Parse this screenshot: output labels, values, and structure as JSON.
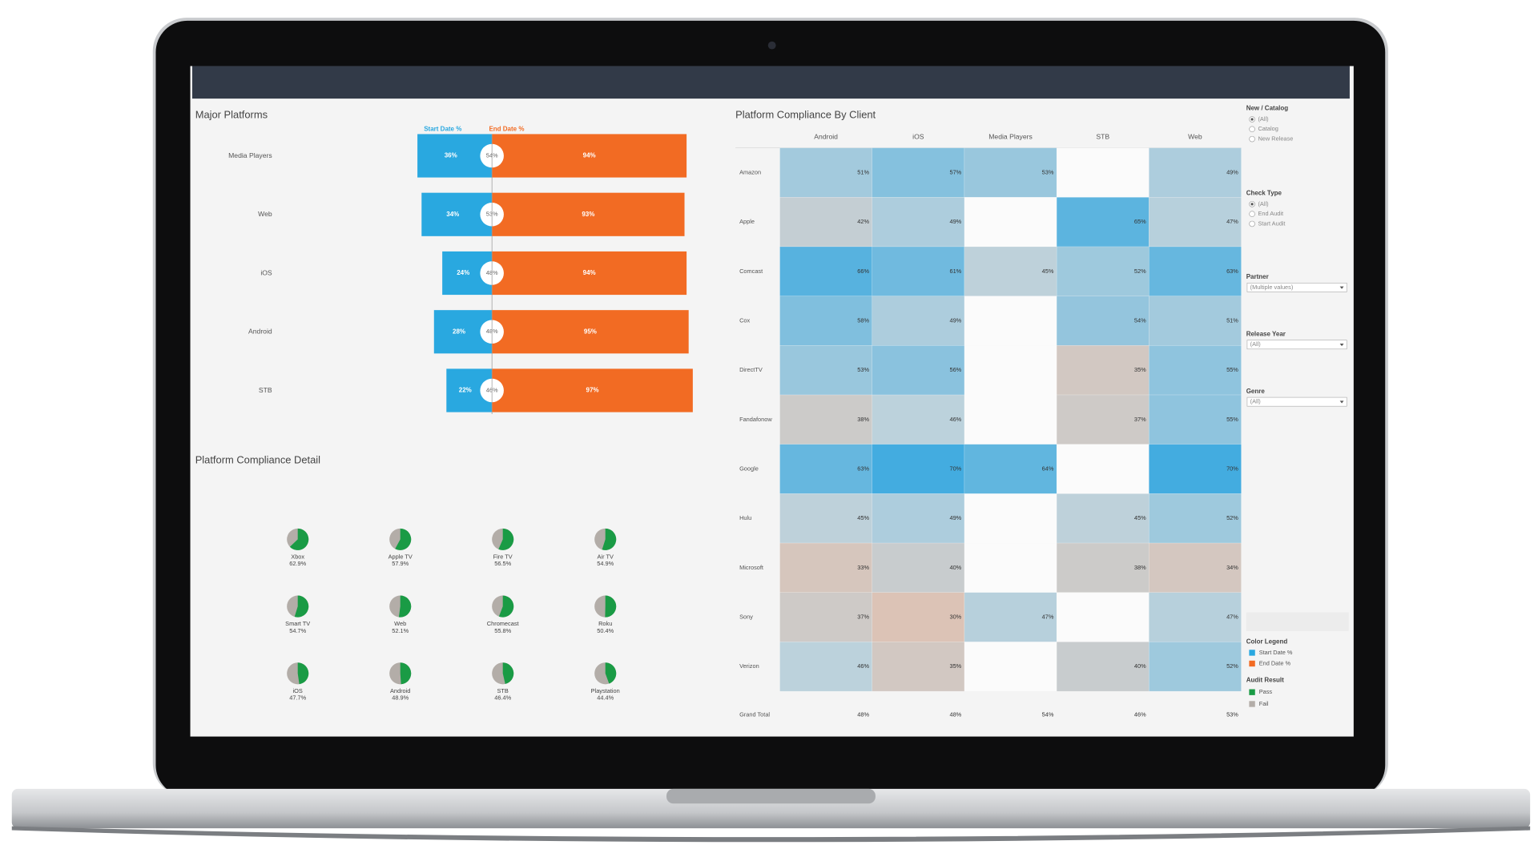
{
  "chart_data": [
    {
      "type": "diverging-bar",
      "title": "Major Platforms",
      "categories": [
        "Media Players",
        "Web",
        "iOS",
        "Android",
        "STB"
      ],
      "series": [
        {
          "name": "Start Date %",
          "color": "#29a8e0",
          "values": [
            36,
            34,
            24,
            28,
            22
          ],
          "value_labels": [
            "36%",
            "34%",
            "24%",
            "28%",
            "22%"
          ]
        },
        {
          "name": "End Date %",
          "color": "#f26b23",
          "values": [
            94,
            93,
            94,
            95,
            97
          ],
          "value_labels": [
            "94%",
            "93%",
            "94%",
            "95%",
            "97%"
          ]
        }
      ],
      "midpoint_values": [
        54,
        53,
        48,
        48,
        46
      ],
      "midpoint_value_labels": [
        "54%",
        "53%",
        "48%",
        "48%",
        "46%"
      ]
    },
    {
      "type": "pie",
      "title": "Platform Compliance Detail",
      "categories": [
        "Xbox",
        "Apple TV",
        "Fire TV",
        "Air TV",
        "Smart TV",
        "Web",
        "Chromecast",
        "Roku",
        "iOS",
        "Android",
        "STB",
        "Playstation"
      ],
      "values": [
        62.9,
        57.9,
        56.5,
        54.9,
        54.7,
        52.1,
        55.8,
        50.4,
        47.7,
        48.9,
        46.4,
        44.4
      ],
      "value_labels": [
        "62.9%",
        "57.9%",
        "56.5%",
        "54.9%",
        "54.7%",
        "52.1%",
        "55.8%",
        "50.4%",
        "47.7%",
        "48.9%",
        "46.4%",
        "44.4%"
      ],
      "legend": {
        "title": "Audit Result",
        "items": [
          {
            "name": "Pass",
            "color": "#1a9b45"
          },
          {
            "name": "Fail",
            "color": "#b3ada8"
          }
        ]
      }
    },
    {
      "type": "heatmap",
      "title": "Platform Compliance By Client",
      "columns": [
        "Android",
        "iOS",
        "Media Players",
        "STB",
        "Web"
      ],
      "rows": [
        "Amazon",
        "Apple",
        "Comcast",
        "Cox",
        "DirectTV",
        "Fandafonow",
        "Google",
        "Hulu",
        "Microsoft",
        "Sony",
        "Verizon"
      ],
      "values": [
        [
          51,
          57,
          53,
          null,
          49
        ],
        [
          42,
          49,
          null,
          65,
          47
        ],
        [
          66,
          61,
          45,
          52,
          63
        ],
        [
          58,
          49,
          null,
          54,
          51
        ],
        [
          53,
          56,
          null,
          35,
          55
        ],
        [
          38,
          46,
          null,
          37,
          55
        ],
        [
          63,
          70,
          64,
          null,
          70
        ],
        [
          45,
          49,
          null,
          45,
          52
        ],
        [
          33,
          40,
          null,
          38,
          34
        ],
        [
          37,
          30,
          47,
          null,
          47
        ],
        [
          46,
          35,
          null,
          40,
          52
        ]
      ],
      "value_labels": [
        [
          "51%",
          "57%",
          "53%",
          null,
          "49%"
        ],
        [
          "42%",
          "49%",
          null,
          "65%",
          "47%"
        ],
        [
          "66%",
          "61%",
          "45%",
          "52%",
          "63%"
        ],
        [
          "58%",
          "49%",
          null,
          "54%",
          "51%"
        ],
        [
          "53%",
          "56%",
          null,
          "35%",
          "55%"
        ],
        [
          "38%",
          "46%",
          null,
          "37%",
          "55%"
        ],
        [
          "63%",
          "70%",
          "64%",
          null,
          "70%"
        ],
        [
          "45%",
          "49%",
          null,
          "45%",
          "52%"
        ],
        [
          "33%",
          "40%",
          null,
          "38%",
          "34%"
        ],
        [
          "37%",
          "30%",
          "47%",
          null,
          "47%"
        ],
        [
          "46%",
          "35%",
          null,
          "40%",
          "52%"
        ]
      ],
      "total_label": "Grand Total",
      "totals": [
        48,
        48,
        54,
        46,
        53
      ],
      "total_labels": [
        "48%",
        "48%",
        "54%",
        "46%",
        "53%"
      ],
      "colors": [
        "#dcc3b6",
        "#bcd2dc",
        "#43ace0"
      ]
    }
  ],
  "filters": [
    {
      "title": "New / Catalog",
      "options": [
        "(All)",
        "Catalog",
        "New Release"
      ],
      "selected": 0
    },
    {
      "title": "Check Type",
      "options": [
        "(All)",
        "End Audit",
        "Start Audit"
      ],
      "selected": 0
    },
    {
      "title": "Partner",
      "value": "(Multiple values)"
    },
    {
      "title": "Release Year",
      "value": "(All)"
    },
    {
      "title": "Genre",
      "value": "(All)"
    }
  ],
  "color_legend_title": "Color Legend"
}
